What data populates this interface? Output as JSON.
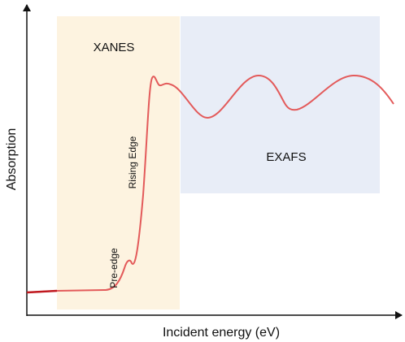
{
  "regions": {
    "xanes": "XANES",
    "exafs": "EXAFS"
  },
  "annotations": {
    "pre_edge": "Pre-edge",
    "rising_edge": "Rising Edge"
  },
  "axes": {
    "y_label": "Absorption",
    "x_label": "Incident energy (eV)"
  }
}
